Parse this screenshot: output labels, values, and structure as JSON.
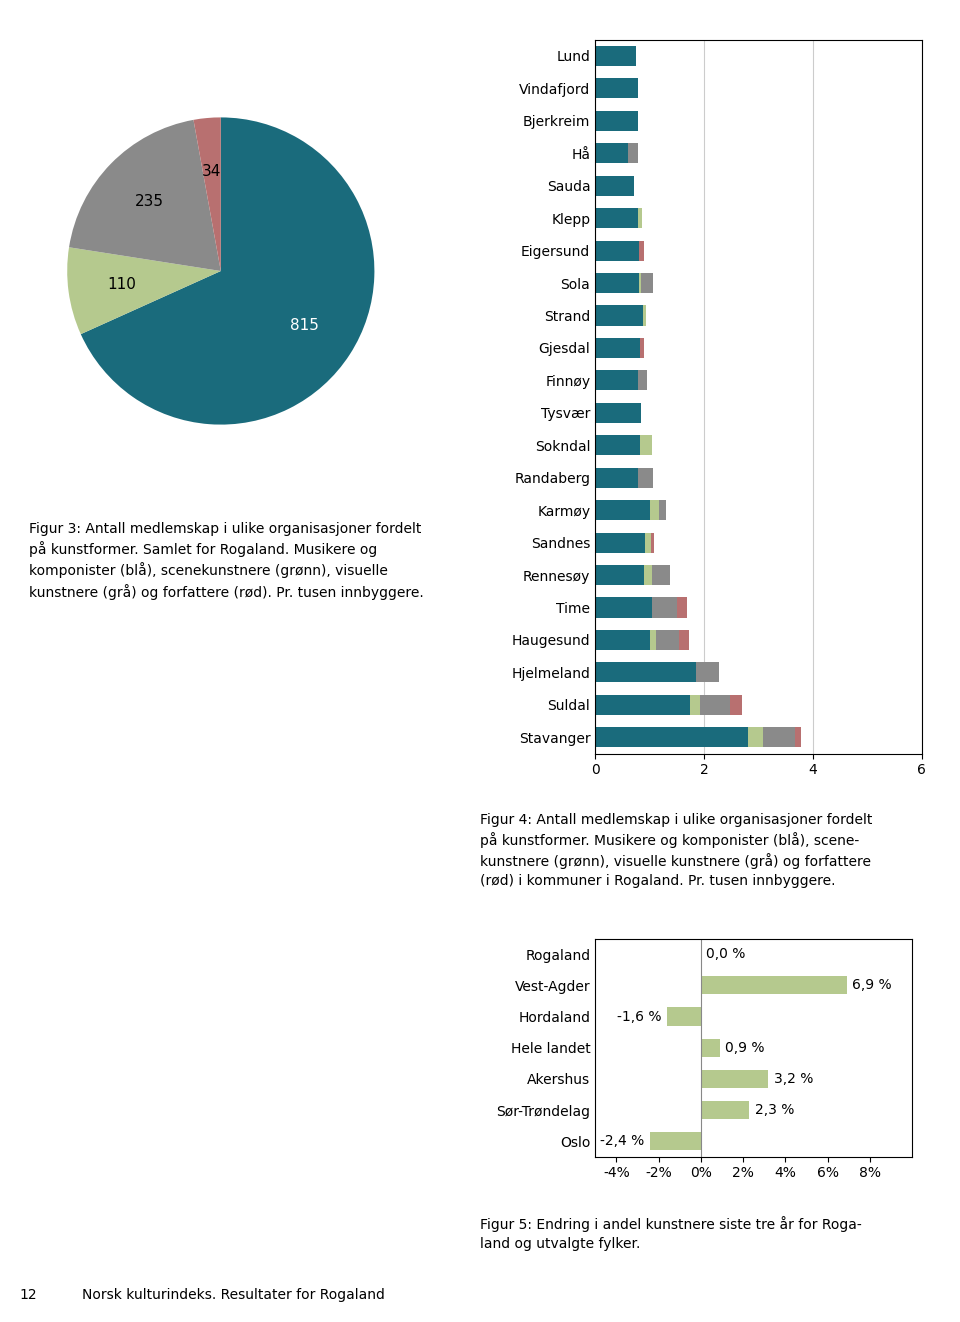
{
  "chart_data": [
    {
      "type": "pie",
      "values": [
        815,
        110,
        235,
        34
      ],
      "colors": [
        "#1a6b7c",
        "#b5c98e",
        "#8a8a8a",
        "#b87070"
      ],
      "data_labels": true,
      "annotations": [
        "Figur 3: Antall medlemskap i ulike organisasjoner fordelt\npå kunstformer. Samlet for Rogaland. Musikere og\nkomponister (blå), scenekunstnere (grønn), visuelle\nkunstnere (grå) og forfattere (rød). Pr. tusen innbyggere."
      ]
    },
    {
      "type": "bar",
      "orientation": "horizontal",
      "stacked": true,
      "categories": [
        "Lund",
        "Vindafjord",
        "Bjerkreim",
        "Hå",
        "Sauda",
        "Klepp",
        "Eigersund",
        "Sola",
        "Strand",
        "Gjesdal",
        "Finnøy",
        "Tysvær",
        "Sokndal",
        "Randaberg",
        "Karmøy",
        "Sandnes",
        "Rennesøy",
        "Time",
        "Haugesund",
        "Hjelmeland",
        "Suldal",
        "Stavanger"
      ],
      "series": [
        {
          "color": "#1a6b7c",
          "values": [
            0.75,
            0.78,
            0.78,
            0.6,
            0.72,
            0.78,
            0.8,
            0.8,
            0.88,
            0.82,
            0.78,
            0.85,
            0.82,
            0.78,
            1.0,
            0.92,
            0.9,
            1.05,
            1.0,
            1.85,
            1.75,
            2.8
          ]
        },
        {
          "color": "#b5c98e",
          "values": [
            0.0,
            0.0,
            0.0,
            0.0,
            0.0,
            0.08,
            0.0,
            0.04,
            0.05,
            0.0,
            0.0,
            0.0,
            0.22,
            0.0,
            0.18,
            0.1,
            0.15,
            0.0,
            0.12,
            0.0,
            0.18,
            0.28
          ]
        },
        {
          "color": "#8a8a8a",
          "values": [
            0.0,
            0.0,
            0.0,
            0.18,
            0.0,
            0.0,
            0.0,
            0.22,
            0.0,
            0.0,
            0.18,
            0.0,
            0.0,
            0.28,
            0.12,
            0.0,
            0.32,
            0.45,
            0.42,
            0.42,
            0.55,
            0.6
          ]
        },
        {
          "color": "#b87070",
          "values": [
            0.0,
            0.0,
            0.0,
            0.0,
            0.0,
            0.0,
            0.1,
            0.0,
            0.0,
            0.08,
            0.0,
            0.0,
            0.0,
            0.0,
            0.0,
            0.07,
            0.0,
            0.18,
            0.18,
            0.0,
            0.22,
            0.1
          ]
        }
      ],
      "xlim": [
        0,
        6
      ],
      "xticks": [
        0,
        2,
        4,
        6
      ],
      "grid": true,
      "annotations": [
        "Figur 4: Antall medlemskap i ulike organisasjoner fordelt\npå kunstformer. Musikere og komponister (blå), scene-\nkunstnere (grønn), visuelle kunstnere (grå) og forfattere\n(rød) i kommuner i Rogaland. Pr. tusen innbyggere."
      ]
    },
    {
      "type": "bar",
      "orientation": "horizontal",
      "categories": [
        "Rogaland",
        "Vest-Agder",
        "Hordaland",
        "Hele landet",
        "Akershus",
        "Sør-Trøndelag",
        "Oslo"
      ],
      "values": [
        0.0,
        6.9,
        -1.6,
        0.9,
        3.2,
        2.3,
        -2.4
      ],
      "value_labels": [
        "0,0 %",
        "6,9 %",
        "-1,6 %",
        "0,9 %",
        "3,2 %",
        "2,3 %",
        "-2,4 %"
      ],
      "data_labels": true,
      "color": "#b5c98e",
      "xlim": [
        -5,
        10
      ],
      "xticks": [
        {
          "value": -4,
          "label": "-4%"
        },
        {
          "value": -2,
          "label": "-2%"
        },
        {
          "value": 0,
          "label": "0%"
        },
        {
          "value": 2,
          "label": "2%"
        },
        {
          "value": 4,
          "label": "4%"
        },
        {
          "value": 6,
          "label": "6%"
        },
        {
          "value": 8,
          "label": "8%"
        }
      ],
      "annotations": [
        "Figur 5: Endring i andel kunstnere siste tre år for Roga-\nland og utvalgte fylker."
      ]
    }
  ],
  "annotations": [
    "12",
    "Norsk kulturindeks. Resultater for Rogaland"
  ]
}
